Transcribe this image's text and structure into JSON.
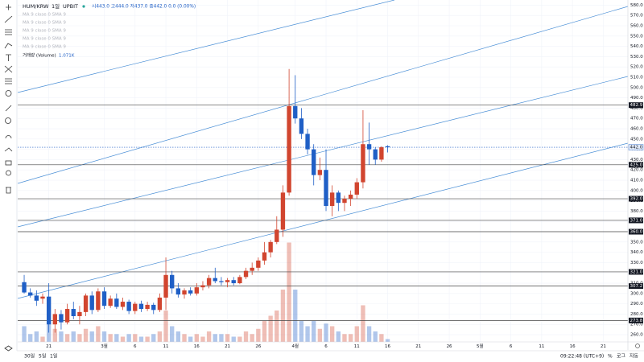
{
  "chart_data": {
    "type": "candlestick",
    "symbol": "HUM/KRW",
    "interval": "1일",
    "exchange": "UPBIT",
    "ohlc_legend": "시443.0 고444.0 저437.0 종442.0 0.0 (0.00%)",
    "indicators": [
      "MA 9 close 0 SMA 9",
      "MA 9 close 0 SMA 9",
      "MA 9 close 0 SMA 9",
      "MA 9 close 0 SMA 9",
      "MA 9 close 0 SMA 9"
    ],
    "volume_legend": {
      "name": "거래량 (Volume)",
      "value_label": "1.071K"
    },
    "up_color": "#d1452f",
    "down_color": "#1f5fc6",
    "open": [
      311,
      301,
      298,
      295,
      297,
      270,
      280,
      272,
      285,
      278,
      282,
      298,
      284,
      302,
      288,
      295,
      287,
      292,
      283,
      290,
      285,
      289,
      284,
      296,
      318,
      305,
      299,
      303,
      300,
      306,
      308,
      315,
      312,
      311,
      313,
      310,
      316,
      322,
      325,
      332,
      340,
      350,
      362,
      398,
      482,
      470,
      455,
      440,
      415,
      420,
      385,
      398,
      388,
      392,
      396,
      408,
      445,
      440,
      430,
      443
    ],
    "high": [
      318,
      305,
      303,
      300,
      310,
      285,
      284,
      290,
      292,
      288,
      300,
      302,
      305,
      306,
      298,
      300,
      296,
      294,
      292,
      293,
      292,
      291,
      300,
      335,
      322,
      310,
      305,
      306,
      310,
      312,
      318,
      325,
      316,
      315,
      316,
      318,
      325,
      330,
      335,
      350,
      352,
      375,
      405,
      518,
      512,
      480,
      460,
      445,
      432,
      440,
      405,
      400,
      395,
      400,
      412,
      478,
      466,
      442,
      443,
      444
    ],
    "low": [
      300,
      296,
      288,
      290,
      262,
      262,
      265,
      270,
      275,
      270,
      278,
      280,
      282,
      285,
      286,
      285,
      284,
      280,
      280,
      282,
      283,
      280,
      282,
      284,
      300,
      296,
      295,
      298,
      298,
      303,
      305,
      310,
      308,
      306,
      308,
      309,
      314,
      318,
      322,
      328,
      335,
      348,
      355,
      395,
      465,
      450,
      435,
      405,
      410,
      380,
      375,
      380,
      380,
      385,
      392,
      402,
      425,
      425,
      428,
      437
    ],
    "close": [
      301,
      298,
      293,
      297,
      270,
      280,
      272,
      285,
      278,
      282,
      298,
      284,
      302,
      288,
      295,
      287,
      292,
      283,
      290,
      285,
      289,
      284,
      296,
      318,
      305,
      299,
      303,
      300,
      306,
      308,
      315,
      312,
      311,
      313,
      310,
      316,
      322,
      325,
      332,
      340,
      350,
      362,
      398,
      482,
      470,
      455,
      440,
      415,
      420,
      385,
      398,
      388,
      392,
      396,
      408,
      445,
      440,
      430,
      442,
      442
    ],
    "volume": [
      6,
      3,
      4,
      2,
      8,
      5,
      4,
      3,
      4,
      3,
      5,
      4,
      6,
      4,
      3,
      3,
      2,
      3,
      3,
      2,
      2,
      3,
      4,
      12,
      6,
      4,
      3,
      2,
      3,
      2,
      4,
      3,
      3,
      3,
      2,
      2,
      4,
      3,
      5,
      8,
      10,
      12,
      20,
      38,
      20,
      8,
      6,
      8,
      5,
      7,
      6,
      4,
      3,
      3,
      6,
      14,
      6,
      4,
      3,
      1.071
    ],
    "vlim": [
      0,
      40
    ],
    "xlim": [
      -1.05,
      98
    ],
    "xticks": [
      {
        "value": 4,
        "label": "21"
      },
      {
        "value": 13,
        "label": "3월"
      },
      {
        "value": 18,
        "label": "6"
      },
      {
        "value": 23,
        "label": "11"
      },
      {
        "value": 28,
        "label": "16"
      },
      {
        "value": 33,
        "label": "21"
      },
      {
        "value": 38,
        "label": "26"
      },
      {
        "value": 44,
        "label": "4월"
      },
      {
        "value": 49,
        "label": "6"
      },
      {
        "value": 54,
        "label": "11"
      },
      {
        "value": 59,
        "label": "16"
      },
      {
        "value": 64,
        "label": "21"
      },
      {
        "value": 69,
        "label": "26"
      },
      {
        "value": 74,
        "label": "5월"
      },
      {
        "value": 79,
        "label": "6"
      },
      {
        "value": 84,
        "label": "11"
      },
      {
        "value": 89,
        "label": "16"
      },
      {
        "value": 94,
        "label": "21"
      }
    ],
    "ylim": [
      253,
      585
    ],
    "yticks": [
      {
        "value": 260,
        "label": "260.0"
      },
      {
        "value": 270,
        "label": "270.0"
      },
      {
        "value": 280,
        "label": "280.0"
      },
      {
        "value": 290,
        "label": "290.0"
      },
      {
        "value": 300,
        "label": "300.0"
      },
      {
        "value": 310,
        "label": "310.0"
      },
      {
        "value": 320,
        "label": "320.0"
      },
      {
        "value": 330,
        "label": "330.0"
      },
      {
        "value": 340,
        "label": "340.0"
      },
      {
        "value": 350,
        "label": "350.0"
      },
      {
        "value": 360,
        "label": "360.0"
      },
      {
        "value": 370,
        "label": "370.0"
      },
      {
        "value": 380,
        "label": "380.0"
      },
      {
        "value": 390,
        "label": "390.0"
      },
      {
        "value": 400,
        "label": "400.0"
      },
      {
        "value": 410,
        "label": "410.0"
      },
      {
        "value": 420,
        "label": "420.0"
      },
      {
        "value": 430,
        "label": "430.0"
      },
      {
        "value": 440,
        "label": "440.0"
      },
      {
        "value": 450,
        "label": "450.0"
      },
      {
        "value": 460,
        "label": "460.0"
      },
      {
        "value": 470,
        "label": "470.0"
      },
      {
        "value": 480,
        "label": "480.0"
      },
      {
        "value": 490,
        "label": "490.0"
      },
      {
        "value": 500,
        "label": "500.0"
      },
      {
        "value": 510,
        "label": "510.0"
      },
      {
        "value": 520,
        "label": "520.0"
      },
      {
        "value": 530,
        "label": "530.0"
      },
      {
        "value": 540,
        "label": "540.0"
      },
      {
        "value": 550,
        "label": "550.0"
      },
      {
        "value": 560,
        "label": "560.0"
      },
      {
        "value": 570,
        "label": "570.0"
      },
      {
        "value": 580,
        "label": "580.0"
      }
    ],
    "grid": true,
    "levels": [
      {
        "value": 482.9,
        "label": "482.9"
      },
      {
        "value": 425,
        "label": "425.0"
      },
      {
        "value": 392,
        "label": "392.0"
      },
      {
        "value": 371,
        "label": "371.0"
      },
      {
        "value": 360,
        "label": "360.0"
      },
      {
        "value": 321,
        "label": "321.0"
      },
      {
        "value": 307.2,
        "label": "307.2"
      },
      {
        "value": 273.8,
        "label": "273.8"
      }
    ],
    "last_price": {
      "value": 442,
      "label": "442.0"
    }
  },
  "bottom_bar": {
    "ranges": [
      "30일",
      "5일",
      "1일"
    ],
    "clock": "09:22:48 (UTC+9)",
    "scale_buttons": [
      "%",
      "로그",
      "자동"
    ]
  }
}
